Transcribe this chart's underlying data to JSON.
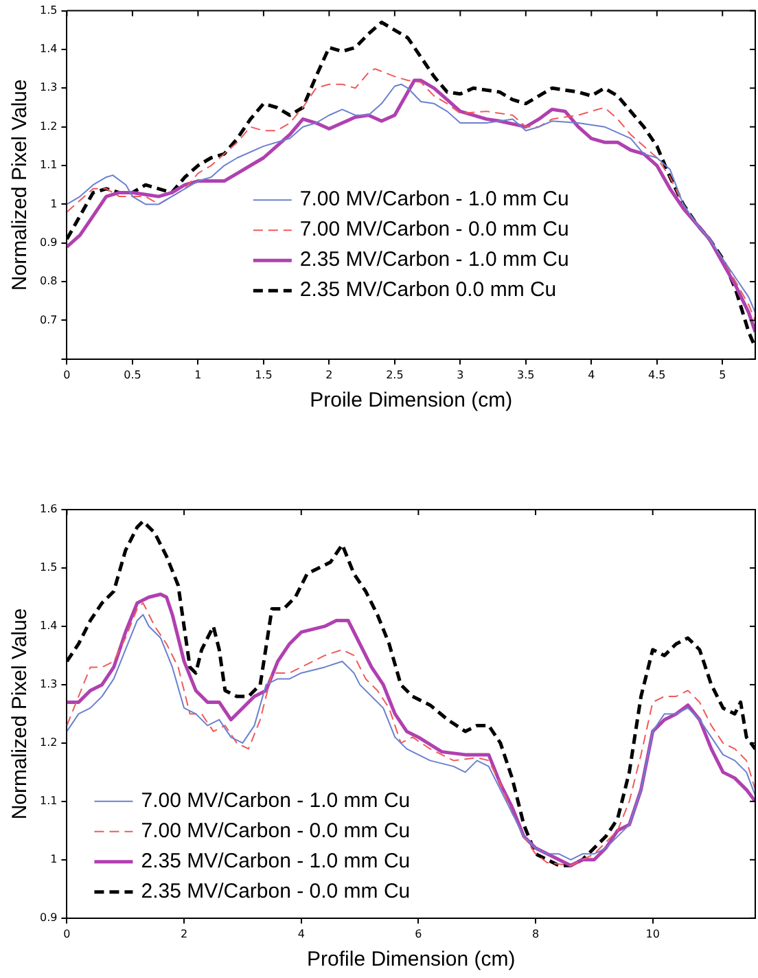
{
  "chart_data": [
    {
      "type": "line",
      "xlabel": "Proile Dimension (cm)",
      "ylabel": "Normalized Pixel Value",
      "xlim": [
        0,
        5.25
      ],
      "ylim": [
        0.6,
        1.5
      ],
      "xticks": [
        0,
        0.5,
        1,
        1.5,
        2,
        2.5,
        3,
        3.5,
        4,
        4.5,
        5
      ],
      "yticks": [
        {
          "value": 0.6,
          "label": null
        },
        0.7,
        0.8,
        0.9,
        1,
        1.1,
        1.2,
        1.3,
        1.4,
        1.5
      ],
      "legend": "center",
      "series": [
        {
          "name": "7.00 MV/Carbon - 1.0 mm Cu",
          "color": "#6a80d0",
          "line_style": "solid",
          "x": [
            0,
            0.1,
            0.2,
            0.3,
            0.35,
            0.45,
            0.5,
            0.6,
            0.7,
            0.8,
            0.9,
            1.0,
            1.1,
            1.2,
            1.3,
            1.5,
            1.7,
            1.8,
            1.9,
            2.0,
            2.1,
            2.2,
            2.3,
            2.4,
            2.5,
            2.55,
            2.6,
            2.7,
            2.8,
            2.9,
            3.0,
            3.2,
            3.4,
            3.5,
            3.6,
            3.7,
            3.9,
            4.1,
            4.3,
            4.4,
            4.5,
            4.6,
            4.7,
            4.8,
            4.9,
            5.0,
            5.1,
            5.2,
            5.25
          ],
          "values": [
            1.0,
            1.02,
            1.05,
            1.07,
            1.075,
            1.05,
            1.02,
            1.0,
            1.0,
            1.02,
            1.04,
            1.06,
            1.07,
            1.1,
            1.12,
            1.15,
            1.17,
            1.2,
            1.21,
            1.23,
            1.245,
            1.23,
            1.23,
            1.26,
            1.305,
            1.31,
            1.3,
            1.265,
            1.26,
            1.24,
            1.21,
            1.21,
            1.22,
            1.19,
            1.2,
            1.215,
            1.21,
            1.2,
            1.17,
            1.13,
            1.12,
            1.09,
            1.0,
            0.95,
            0.91,
            0.86,
            0.81,
            0.76,
            0.72
          ]
        },
        {
          "name": "7.00 MV/Carbon - 0.0 mm Cu",
          "color": "#f05a5a",
          "line_style": "dashed",
          "x": [
            0,
            0.1,
            0.2,
            0.3,
            0.4,
            0.5,
            0.6,
            0.7,
            0.8,
            0.9,
            1.0,
            1.1,
            1.2,
            1.3,
            1.4,
            1.5,
            1.6,
            1.7,
            1.8,
            1.9,
            2.0,
            2.1,
            2.2,
            2.3,
            2.35,
            2.5,
            2.6,
            2.7,
            2.8,
            2.9,
            3.0,
            3.2,
            3.4,
            3.5,
            3.6,
            3.7,
            3.9,
            4.0,
            4.1,
            4.2,
            4.3,
            4.4,
            4.5,
            4.6,
            4.7,
            4.8,
            4.9,
            5.0,
            5.1,
            5.2,
            5.25
          ],
          "values": [
            0.98,
            1.01,
            1.04,
            1.04,
            1.02,
            1.02,
            1.02,
            1.0,
            1.02,
            1.04,
            1.08,
            1.1,
            1.13,
            1.16,
            1.2,
            1.19,
            1.19,
            1.21,
            1.25,
            1.3,
            1.31,
            1.31,
            1.3,
            1.34,
            1.35,
            1.33,
            1.32,
            1.315,
            1.28,
            1.26,
            1.235,
            1.24,
            1.23,
            1.2,
            1.2,
            1.22,
            1.23,
            1.24,
            1.25,
            1.22,
            1.18,
            1.15,
            1.12,
            1.07,
            1.0,
            0.95,
            0.91,
            0.86,
            0.8,
            0.74,
            0.7
          ]
        },
        {
          "name": "2.35 MV/Carbon - 1.0 mm Cu",
          "color": "#b040b0",
          "line_style": "solid",
          "x": [
            0,
            0.1,
            0.2,
            0.3,
            0.4,
            0.5,
            0.6,
            0.7,
            0.8,
            0.9,
            1.0,
            1.1,
            1.2,
            1.3,
            1.4,
            1.5,
            1.6,
            1.7,
            1.8,
            1.9,
            2.0,
            2.1,
            2.2,
            2.3,
            2.4,
            2.5,
            2.6,
            2.65,
            2.7,
            2.8,
            2.9,
            3.0,
            3.2,
            3.3,
            3.5,
            3.6,
            3.7,
            3.8,
            3.9,
            4.0,
            4.1,
            4.2,
            4.3,
            4.4,
            4.5,
            4.6,
            4.7,
            4.8,
            4.9,
            5.0,
            5.1,
            5.2,
            5.25
          ],
          "values": [
            0.89,
            0.92,
            0.97,
            1.02,
            1.03,
            1.03,
            1.025,
            1.02,
            1.03,
            1.05,
            1.06,
            1.06,
            1.06,
            1.08,
            1.1,
            1.12,
            1.15,
            1.18,
            1.22,
            1.21,
            1.195,
            1.21,
            1.225,
            1.23,
            1.215,
            1.23,
            1.29,
            1.32,
            1.32,
            1.3,
            1.27,
            1.24,
            1.22,
            1.215,
            1.2,
            1.22,
            1.245,
            1.24,
            1.2,
            1.17,
            1.16,
            1.16,
            1.14,
            1.13,
            1.1,
            1.04,
            0.99,
            0.95,
            0.91,
            0.85,
            0.79,
            0.72,
            0.67
          ]
        },
        {
          "name": "2.35 MV/Carbon 0.0 mm Cu",
          "color": "#000000",
          "line_style": "dashed",
          "x": [
            0,
            0.1,
            0.2,
            0.3,
            0.4,
            0.5,
            0.6,
            0.7,
            0.8,
            0.9,
            1.0,
            1.1,
            1.2,
            1.3,
            1.4,
            1.5,
            1.6,
            1.7,
            1.8,
            1.9,
            2.0,
            2.1,
            2.2,
            2.3,
            2.4,
            2.5,
            2.6,
            2.7,
            2.8,
            2.9,
            3.0,
            3.1,
            3.3,
            3.4,
            3.5,
            3.6,
            3.7,
            3.8,
            3.9,
            4.0,
            4.1,
            4.2,
            4.3,
            4.4,
            4.5,
            4.6,
            4.7,
            4.8,
            4.9,
            5.0,
            5.1,
            5.2,
            5.25
          ],
          "values": [
            0.91,
            0.97,
            1.03,
            1.04,
            1.03,
            1.03,
            1.05,
            1.04,
            1.03,
            1.07,
            1.1,
            1.12,
            1.13,
            1.17,
            1.22,
            1.26,
            1.25,
            1.23,
            1.25,
            1.33,
            1.405,
            1.395,
            1.405,
            1.44,
            1.47,
            1.45,
            1.43,
            1.38,
            1.33,
            1.29,
            1.285,
            1.3,
            1.29,
            1.27,
            1.26,
            1.28,
            1.3,
            1.295,
            1.29,
            1.28,
            1.3,
            1.28,
            1.24,
            1.2,
            1.15,
            1.07,
            1.0,
            0.95,
            0.91,
            0.86,
            0.78,
            0.67,
            0.63
          ]
        }
      ]
    },
    {
      "type": "line",
      "xlabel": "Profile Dimension (cm)",
      "ylabel": "Normalized Pixel Value",
      "xlim": [
        0,
        11.75
      ],
      "ylim": [
        0.9,
        1.6
      ],
      "xticks": [
        0,
        2,
        4,
        6,
        8,
        10
      ],
      "yticks": [
        0.9,
        1,
        1.1,
        1.2,
        1.3,
        1.4,
        1.5,
        1.6
      ],
      "legend": "bottom left",
      "series": [
        {
          "name": "7.00 MV/Carbon - 1.0 mm Cu",
          "color": "#6a80d0",
          "line_style": "solid",
          "x": [
            0,
            0.2,
            0.4,
            0.6,
            0.8,
            1.0,
            1.2,
            1.3,
            1.4,
            1.6,
            1.8,
            2.0,
            2.2,
            2.4,
            2.6,
            2.8,
            3.0,
            3.2,
            3.4,
            3.6,
            3.8,
            4.0,
            4.4,
            4.7,
            4.9,
            5.0,
            5.2,
            5.4,
            5.6,
            5.8,
            6.0,
            6.2,
            6.6,
            6.8,
            7.0,
            7.2,
            7.4,
            7.6,
            7.8,
            8.0,
            8.2,
            8.4,
            8.6,
            8.8,
            9.0,
            9.2,
            9.4,
            9.6,
            9.8,
            10.0,
            10.2,
            10.4,
            10.6,
            10.8,
            11.0,
            11.2,
            11.4,
            11.6,
            11.75
          ],
          "values": [
            1.22,
            1.25,
            1.26,
            1.28,
            1.31,
            1.36,
            1.41,
            1.42,
            1.4,
            1.38,
            1.33,
            1.26,
            1.25,
            1.23,
            1.24,
            1.21,
            1.2,
            1.23,
            1.3,
            1.31,
            1.31,
            1.32,
            1.33,
            1.34,
            1.32,
            1.3,
            1.28,
            1.26,
            1.21,
            1.19,
            1.18,
            1.17,
            1.16,
            1.15,
            1.17,
            1.16,
            1.12,
            1.08,
            1.04,
            1.02,
            1.01,
            1.01,
            1.0,
            1.01,
            1.01,
            1.02,
            1.04,
            1.06,
            1.12,
            1.22,
            1.25,
            1.25,
            1.26,
            1.24,
            1.21,
            1.18,
            1.17,
            1.15,
            1.11
          ]
        },
        {
          "name": "7.00 MV/Carbon - 0.0 mm Cu",
          "color": "#f05a5a",
          "line_style": "dashed",
          "x": [
            0,
            0.2,
            0.4,
            0.6,
            0.8,
            1.0,
            1.2,
            1.3,
            1.5,
            1.7,
            1.9,
            2.1,
            2.3,
            2.5,
            2.7,
            2.9,
            3.1,
            3.3,
            3.5,
            3.8,
            4.0,
            4.4,
            4.7,
            4.9,
            5.1,
            5.3,
            5.5,
            5.7,
            5.9,
            6.2,
            6.6,
            7.0,
            7.2,
            7.4,
            7.6,
            7.8,
            8.0,
            8.2,
            8.6,
            8.8,
            9.0,
            9.2,
            9.4,
            9.6,
            9.8,
            10.0,
            10.2,
            10.4,
            10.6,
            10.8,
            11.0,
            11.2,
            11.4,
            11.6,
            11.75
          ],
          "values": [
            1.23,
            1.28,
            1.33,
            1.33,
            1.34,
            1.38,
            1.43,
            1.44,
            1.4,
            1.37,
            1.33,
            1.25,
            1.25,
            1.22,
            1.23,
            1.2,
            1.19,
            1.24,
            1.32,
            1.32,
            1.33,
            1.35,
            1.36,
            1.35,
            1.31,
            1.29,
            1.26,
            1.2,
            1.21,
            1.19,
            1.17,
            1.175,
            1.17,
            1.13,
            1.08,
            1.04,
            1.01,
            0.995,
            0.99,
            1.0,
            1.01,
            1.03,
            1.05,
            1.1,
            1.18,
            1.27,
            1.28,
            1.28,
            1.29,
            1.27,
            1.23,
            1.2,
            1.19,
            1.17,
            1.12
          ]
        },
        {
          "name": "2.35 MV/Carbon - 1.0 mm Cu",
          "color": "#b040b0",
          "line_style": "solid",
          "x": [
            0,
            0.2,
            0.4,
            0.6,
            0.8,
            1.0,
            1.2,
            1.4,
            1.6,
            1.7,
            1.8,
            2.0,
            2.2,
            2.4,
            2.6,
            2.8,
            3.0,
            3.2,
            3.4,
            3.6,
            3.8,
            4.0,
            4.4,
            4.6,
            4.8,
            5.0,
            5.2,
            5.4,
            5.6,
            5.8,
            6.0,
            6.4,
            6.8,
            7.2,
            7.4,
            7.6,
            7.8,
            8.0,
            8.2,
            8.4,
            8.6,
            8.8,
            9.0,
            9.2,
            9.4,
            9.6,
            9.8,
            10.0,
            10.2,
            10.4,
            10.6,
            10.8,
            11.0,
            11.2,
            11.4,
            11.6,
            11.75
          ],
          "values": [
            1.27,
            1.27,
            1.29,
            1.3,
            1.33,
            1.39,
            1.44,
            1.45,
            1.455,
            1.45,
            1.42,
            1.34,
            1.29,
            1.27,
            1.27,
            1.24,
            1.26,
            1.28,
            1.29,
            1.34,
            1.37,
            1.39,
            1.4,
            1.41,
            1.41,
            1.37,
            1.33,
            1.3,
            1.25,
            1.22,
            1.21,
            1.185,
            1.18,
            1.18,
            1.13,
            1.09,
            1.04,
            1.02,
            1.01,
            1.0,
            0.99,
            1.0,
            1.0,
            1.02,
            1.05,
            1.06,
            1.12,
            1.22,
            1.24,
            1.25,
            1.265,
            1.24,
            1.19,
            1.15,
            1.14,
            1.12,
            1.1
          ]
        },
        {
          "name": "2.35 MV/Carbon - 0.0 mm Cu",
          "color": "#000000",
          "line_style": "dashed",
          "x": [
            0,
            0.2,
            0.4,
            0.6,
            0.8,
            1.0,
            1.2,
            1.3,
            1.5,
            1.7,
            1.9,
            2.0,
            2.1,
            2.2,
            2.3,
            2.5,
            2.6,
            2.7,
            2.9,
            3.1,
            3.3,
            3.5,
            3.7,
            3.9,
            4.1,
            4.3,
            4.5,
            4.7,
            4.9,
            5.1,
            5.3,
            5.5,
            5.7,
            5.9,
            6.2,
            6.5,
            6.8,
            7.0,
            7.2,
            7.4,
            7.6,
            7.8,
            8.0,
            8.2,
            8.4,
            8.6,
            8.8,
            9.0,
            9.2,
            9.4,
            9.6,
            9.8,
            10.0,
            10.2,
            10.4,
            10.6,
            10.8,
            11.0,
            11.2,
            11.4,
            11.5,
            11.6,
            11.75
          ],
          "values": [
            1.34,
            1.37,
            1.41,
            1.44,
            1.46,
            1.53,
            1.57,
            1.58,
            1.56,
            1.52,
            1.47,
            1.4,
            1.33,
            1.32,
            1.36,
            1.4,
            1.36,
            1.29,
            1.28,
            1.28,
            1.3,
            1.43,
            1.43,
            1.45,
            1.49,
            1.5,
            1.51,
            1.54,
            1.49,
            1.46,
            1.42,
            1.37,
            1.3,
            1.28,
            1.265,
            1.24,
            1.22,
            1.23,
            1.23,
            1.2,
            1.14,
            1.06,
            1.01,
            1.0,
            0.99,
            0.99,
            1.0,
            1.02,
            1.04,
            1.07,
            1.15,
            1.28,
            1.36,
            1.35,
            1.37,
            1.38,
            1.36,
            1.3,
            1.26,
            1.25,
            1.27,
            1.21,
            1.19
          ]
        }
      ]
    }
  ]
}
